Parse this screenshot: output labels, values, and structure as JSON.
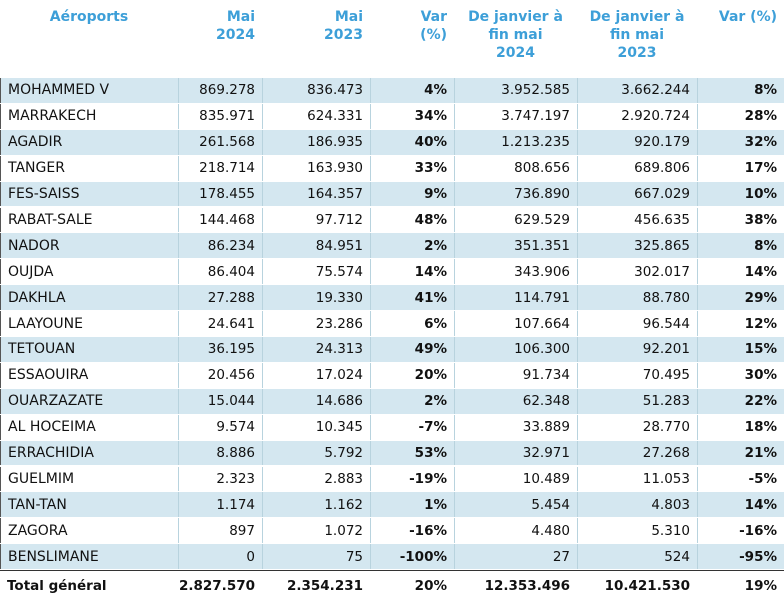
{
  "table": {
    "header": [
      [
        "Aéroports"
      ],
      [
        "Mai",
        "2024"
      ],
      [
        "Mai",
        "2023"
      ],
      [
        "Var",
        "(%)"
      ],
      [
        "De janvier à",
        "fin mai",
        "2024"
      ],
      [
        "De janvier à",
        "fin mai",
        "2023"
      ],
      [
        "Var  (%)"
      ]
    ],
    "rows": [
      [
        "MOHAMMED V",
        "869.278",
        "836.473",
        "4%",
        "3.952.585",
        "3.662.244",
        "8%"
      ],
      [
        "MARRAKECH",
        "835.971",
        "624.331",
        "34%",
        "3.747.197",
        "2.920.724",
        "28%"
      ],
      [
        "AGADIR",
        "261.568",
        "186.935",
        "40%",
        "1.213.235",
        "920.179",
        "32%"
      ],
      [
        "TANGER",
        "218.714",
        "163.930",
        "33%",
        "808.656",
        "689.806",
        "17%"
      ],
      [
        "FES-SAISS",
        "178.455",
        "164.357",
        "9%",
        "736.890",
        "667.029",
        "10%"
      ],
      [
        "RABAT-SALE",
        "144.468",
        "97.712",
        "48%",
        "629.529",
        "456.635",
        "38%"
      ],
      [
        "NADOR",
        "86.234",
        "84.951",
        "2%",
        "351.351",
        "325.865",
        "8%"
      ],
      [
        "OUJDA",
        "86.404",
        "75.574",
        "14%",
        "343.906",
        "302.017",
        "14%"
      ],
      [
        "DAKHLA",
        "27.288",
        "19.330",
        "41%",
        "114.791",
        "88.780",
        "29%"
      ],
      [
        "LAAYOUNE",
        "24.641",
        "23.286",
        "6%",
        "107.664",
        "96.544",
        "12%"
      ],
      [
        "TETOUAN",
        "36.195",
        "24.313",
        "49%",
        "106.300",
        "92.201",
        "15%"
      ],
      [
        "ESSAOUIRA",
        "20.456",
        "17.024",
        "20%",
        "91.734",
        "70.495",
        "30%"
      ],
      [
        "OUARZAZATE",
        "15.044",
        "14.686",
        "2%",
        "62.348",
        "51.283",
        "22%"
      ],
      [
        "AL HOCEIMA",
        "9.574",
        "10.345",
        "-7%",
        "33.889",
        "28.770",
        "18%"
      ],
      [
        "ERRACHIDIA",
        "8.886",
        "5.792",
        "53%",
        "32.971",
        "27.268",
        "21%"
      ],
      [
        "GUELMIM",
        "2.323",
        "2.883",
        "-19%",
        "10.489",
        "11.053",
        "-5%"
      ],
      [
        "TAN-TAN",
        "1.174",
        "1.162",
        "1%",
        "5.454",
        "4.803",
        "14%"
      ],
      [
        "ZAGORA",
        "897",
        "1.072",
        "-16%",
        "4.480",
        "5.310",
        "-16%"
      ],
      [
        "BENSLIMANE",
        "0",
        "75",
        "-100%",
        "27",
        "524",
        "-95%"
      ]
    ],
    "total": [
      "Total général",
      "2.827.570",
      "2.354.231",
      "20%",
      "12.353.496",
      "10.421.530",
      "19%"
    ]
  }
}
